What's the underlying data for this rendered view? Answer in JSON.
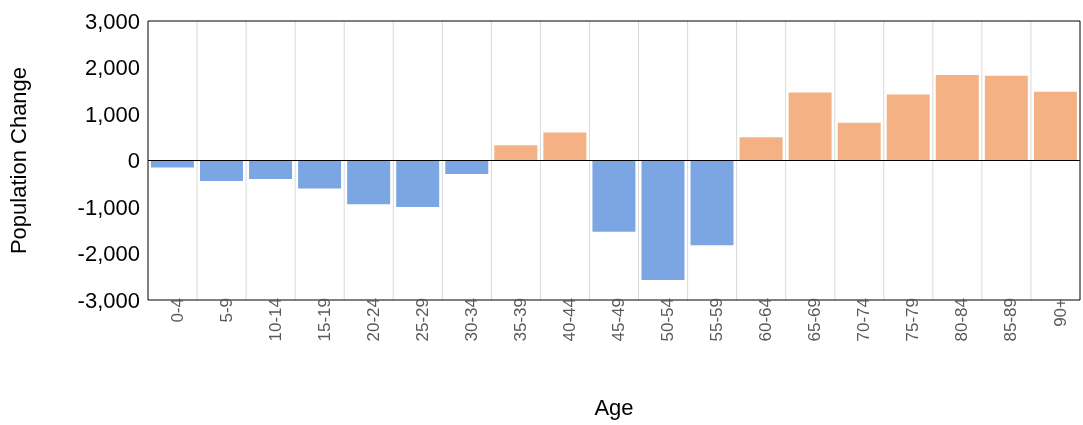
{
  "chart_data": {
    "type": "bar",
    "xlabel": "Age",
    "ylabel": "Population Change",
    "categories": [
      "0-4",
      "5-9",
      "10-14",
      "15-19",
      "20-24",
      "25-29",
      "30-34",
      "35-39",
      "40-44",
      "45-49",
      "50-54",
      "55-59",
      "60-64",
      "65-69",
      "70-74",
      "75-79",
      "80-84",
      "85-89",
      "90+"
    ],
    "values": [
      -150,
      -440,
      -400,
      -600,
      -940,
      -1000,
      -290,
      330,
      600,
      -1530,
      -2570,
      -1820,
      500,
      1460,
      810,
      1420,
      1840,
      1820,
      1480
    ],
    "colors": [
      "#7ba6e3",
      "#7ba6e3",
      "#7ba6e3",
      "#7ba6e3",
      "#7ba6e3",
      "#7ba6e3",
      "#7ba6e3",
      "#f4b183",
      "#f4b183",
      "#7ba6e3",
      "#7ba6e3",
      "#7ba6e3",
      "#f4b183",
      "#f4b183",
      "#f4b183",
      "#f4b183",
      "#f4b183",
      "#f4b183",
      "#f4b183"
    ],
    "ylim": [
      -3000,
      3000
    ],
    "yticks": [
      {
        "value": -3000,
        "label": "-3,000"
      },
      {
        "value": -2000,
        "label": "-2,000"
      },
      {
        "value": -1000,
        "label": "-1,000"
      },
      0,
      {
        "value": 1000,
        "label": "1,000"
      },
      {
        "value": 2000,
        "label": "2,000"
      },
      {
        "value": 3000,
        "label": "3,000"
      }
    ],
    "grid": "x"
  }
}
